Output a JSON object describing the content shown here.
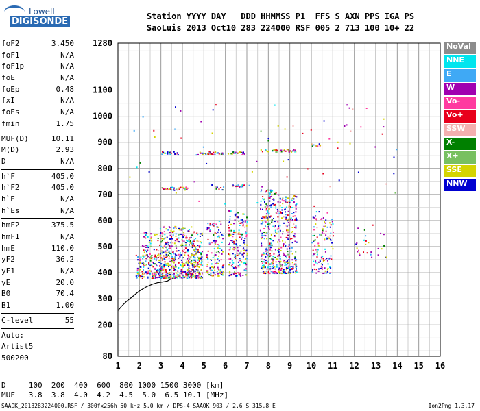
{
  "logo": {
    "top": "Lowell",
    "bottom": "DIGISONDE"
  },
  "header": {
    "line1": "Station YYYY DAY   DDD HHMMSS P1  FFS S AXN PPS IGA PS",
    "line2": "SaoLuis 2013 Oct10 283 224000 RSF 005 2 713 100 10+ 22"
  },
  "params": [
    {
      "label": "foF2",
      "value": "3.450"
    },
    {
      "label": "foF1",
      "value": "N/A"
    },
    {
      "label": "foF1p",
      "value": "N/A"
    },
    {
      "label": "foE",
      "value": "N/A"
    },
    {
      "label": "foEp",
      "value": "0.48"
    },
    {
      "label": "fxI",
      "value": "N/A"
    },
    {
      "label": "foEs",
      "value": "N/A"
    },
    {
      "label": "fmin",
      "value": "1.75"
    },
    {
      "sep": true
    },
    {
      "label": "MUF(D)",
      "value": "10.11"
    },
    {
      "label": "M(D)",
      "value": "2.93"
    },
    {
      "label": "D",
      "value": "N/A"
    },
    {
      "sep": true
    },
    {
      "label": "h`F",
      "value": "405.0"
    },
    {
      "label": "h`F2",
      "value": "405.0"
    },
    {
      "label": "h`E",
      "value": "N/A"
    },
    {
      "label": "h`Es",
      "value": "N/A"
    },
    {
      "sep": true
    },
    {
      "label": "hmF2",
      "value": "375.5"
    },
    {
      "label": "hmF1",
      "value": "N/A"
    },
    {
      "label": "hmE",
      "value": "110.0"
    },
    {
      "label": "yF2",
      "value": "36.2"
    },
    {
      "label": "yF1",
      "value": "N/A"
    },
    {
      "label": "yE",
      "value": "20.0"
    },
    {
      "label": "B0",
      "value": "70.4"
    },
    {
      "label": "B1",
      "value": "1.00"
    },
    {
      "sep": true
    },
    {
      "label": "C-level",
      "value": "55"
    },
    {
      "sep": true
    },
    {
      "text": "Auto:"
    },
    {
      "text": "Artist5"
    },
    {
      "text": "500200"
    }
  ],
  "legend": [
    {
      "label": "NoVal",
      "color": "#8c8c8c"
    },
    {
      "label": "NNE",
      "color": "#00e5ee"
    },
    {
      "label": "E",
      "color": "#3fa9f5"
    },
    {
      "label": "W",
      "color": "#a000b0"
    },
    {
      "label": "Vo-",
      "color": "#ff3aa0"
    },
    {
      "label": "Vo+",
      "color": "#e8001c"
    },
    {
      "label": "SSW",
      "color": "#f4b0b0"
    },
    {
      "label": "X-",
      "color": "#008000"
    },
    {
      "label": "X+",
      "color": "#78c060"
    },
    {
      "label": "SSE",
      "color": "#d4d400"
    },
    {
      "label": "NNW",
      "color": "#0000d0"
    }
  ],
  "chart_data": {
    "type": "scatter",
    "title": "",
    "xlabel": "",
    "ylabel": "",
    "xlim": [
      1,
      16
    ],
    "ylim": [
      80,
      1280
    ],
    "grid": true,
    "xticks": [
      "1",
      "2",
      "3",
      "4",
      "5",
      "6",
      "7",
      "8",
      "9",
      "10",
      "11",
      "12",
      "13",
      "14",
      "15",
      "16"
    ],
    "yticks": [
      "80",
      "200",
      "300",
      "400",
      "500",
      "600",
      "700",
      "800",
      "900",
      "1000",
      "1100",
      "1280"
    ],
    "clusters": [
      {
        "x": [
          1.8,
          3.4
        ],
        "y": [
          380,
          470
        ],
        "density": 1.0
      },
      {
        "x": [
          2.9,
          4.9
        ],
        "y": [
          380,
          580
        ],
        "density": 0.9
      },
      {
        "x": [
          2.1,
          3.2
        ],
        "y": [
          460,
          560
        ],
        "density": 0.4
      },
      {
        "x": [
          4.2,
          4.8
        ],
        "y": [
          390,
          470
        ],
        "density": 0.8
      },
      {
        "x": [
          5.1,
          5.9
        ],
        "y": [
          390,
          600
        ],
        "density": 0.6
      },
      {
        "x": [
          6.1,
          7.0
        ],
        "y": [
          390,
          640
        ],
        "density": 0.6
      },
      {
        "x": [
          7.6,
          8.5
        ],
        "y": [
          400,
          720
        ],
        "density": 0.7
      },
      {
        "x": [
          8.5,
          9.3
        ],
        "y": [
          400,
          700
        ],
        "density": 0.7
      },
      {
        "x": [
          10.0,
          11.0
        ],
        "y": [
          400,
          640
        ],
        "density": 0.4
      },
      {
        "x": [
          12.0,
          13.5
        ],
        "y": [
          460,
          600
        ],
        "density": 0.1
      }
    ],
    "bands": [
      {
        "x": [
          3.0,
          4.4
        ],
        "y": 725
      },
      {
        "x": [
          5.5,
          5.9
        ],
        "y": 725
      },
      {
        "x": [
          6.3,
          6.9
        ],
        "y": 735
      },
      {
        "x": [
          3.0,
          3.8
        ],
        "y": 860
      },
      {
        "x": [
          4.6,
          5.9
        ],
        "y": 860
      },
      {
        "x": [
          6.1,
          6.9
        ],
        "y": 860
      },
      {
        "x": [
          7.6,
          9.3
        ],
        "y": 870
      },
      {
        "x": [
          10.0,
          10.4
        ],
        "y": 890
      }
    ],
    "trace": {
      "x": [
        1.0,
        1.15,
        1.4,
        1.7,
        2.0,
        2.3,
        2.6,
        2.85,
        3.1,
        3.3,
        3.45
      ],
      "y": [
        255,
        270,
        290,
        310,
        330,
        345,
        356,
        362,
        365,
        368,
        375
      ]
    }
  },
  "footer": {
    "line1": "D     100  200  400  600  800 1000 1500 3000 [km]",
    "line2": "MUF   3.8  3.8  4.0  4.2  4.5  5.0  6.5 10.1 [MHz]",
    "bottom": "SAAOK_2013283224000.RSF / 300fx256h 50 kHz 5.0 km / DPS-4 SAAOK 903 / 2.6 S 315.8 E",
    "version": "Ion2Png 1.3.17"
  }
}
